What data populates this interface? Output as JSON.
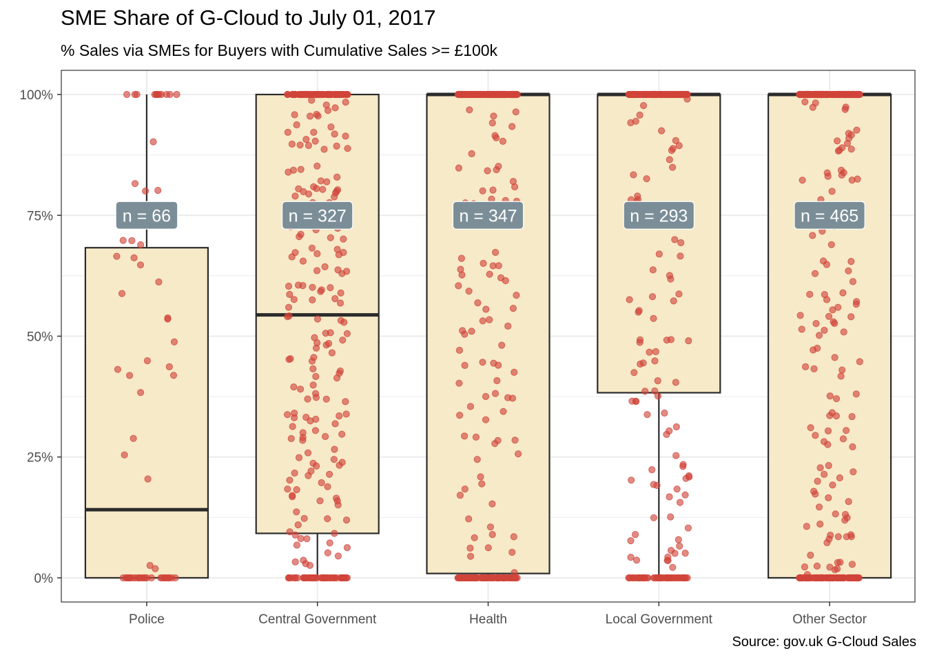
{
  "chart_data": {
    "type": "box",
    "title": "SME Share of G-Cloud to July 01, 2017",
    "subtitle": "% Sales via SMEs for Buyers with Cumulative Sales >= £100k",
    "caption": "Source: gov.uk G-Cloud Sales",
    "xlabel": "",
    "ylabel": "",
    "ylim": [
      -0.05,
      1.05
    ],
    "y_ticks": [
      0,
      0.25,
      0.5,
      0.75,
      1.0
    ],
    "y_tick_labels": [
      "0%",
      "25%",
      "50%",
      "75%",
      "100%"
    ],
    "categories": [
      "Police",
      "Central Government",
      "Health",
      "Local Government",
      "Other Sector"
    ],
    "boxes": [
      {
        "category": "Police",
        "lower_whisker": 0.0,
        "q1": 0.0,
        "median": 0.141,
        "q3": 0.683,
        "upper_whisker": 1.0,
        "n": 66,
        "n_label": "n = 66"
      },
      {
        "category": "Central Government",
        "lower_whisker": 0.0,
        "q1": 0.092,
        "median": 0.544,
        "q3": 1.0,
        "upper_whisker": 1.0,
        "n": 327,
        "n_label": "n = 327"
      },
      {
        "category": "Health",
        "lower_whisker": 0.0,
        "q1": 0.009,
        "median": 1.0,
        "q3": 1.0,
        "upper_whisker": 1.0,
        "n": 347,
        "n_label": "n = 347"
      },
      {
        "category": "Local Government",
        "lower_whisker": 0.0,
        "q1": 0.383,
        "median": 1.0,
        "q3": 1.0,
        "upper_whisker": 1.0,
        "n": 293,
        "n_label": "n = 293"
      },
      {
        "category": "Other Sector",
        "lower_whisker": 0.0,
        "q1": 0.0,
        "median": 1.0,
        "q3": 1.0,
        "upper_whisker": 1.0,
        "n": 465,
        "n_label": "n = 465"
      }
    ],
    "label_y": 0.75,
    "grid": true,
    "legend": "none",
    "colors": {
      "box_fill": "#f7eac8",
      "box_stroke": "#2b2b2b",
      "point": "#d0443a",
      "label_bg": "#7b8e97",
      "label_text": "#ffffff",
      "grid": "#ebebeb"
    }
  }
}
